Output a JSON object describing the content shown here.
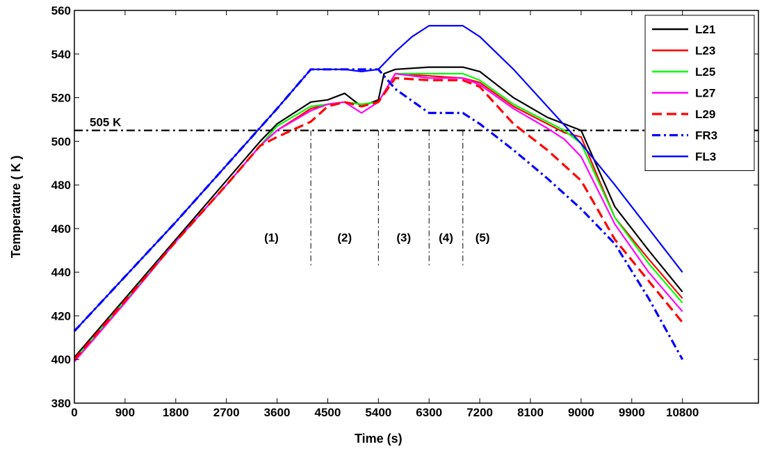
{
  "chart_data": {
    "type": "line",
    "xlabel": "Time (s)",
    "ylabel": "Temperature ( K )",
    "xlim": [
      0,
      12150
    ],
    "ylim": [
      380,
      560
    ],
    "xticks": [
      0,
      900,
      1800,
      2700,
      3600,
      4500,
      5400,
      6300,
      7200,
      8100,
      9000,
      9900,
      10800
    ],
    "yticks": [
      380,
      400,
      420,
      440,
      460,
      480,
      500,
      520,
      540,
      560
    ],
    "grid": false,
    "legend_position": "top-right",
    "series": [
      {
        "name": "L21",
        "color": "#000000",
        "dash": "solid",
        "x": [
          0,
          900,
          1800,
          2700,
          3300,
          3600,
          4200,
          4500,
          4800,
          5100,
          5400,
          5500,
          5700,
          6300,
          6900,
          7200,
          7800,
          8400,
          9000,
          9600,
          10200,
          10800
        ],
        "y": [
          401,
          428,
          455,
          482,
          500,
          508,
          518,
          519,
          522,
          516,
          519,
          531,
          533,
          534,
          534,
          532,
          520,
          511,
          505,
          470,
          450,
          431
        ]
      },
      {
        "name": "L23",
        "color": "#ff0000",
        "dash": "solid",
        "x": [
          0,
          900,
          1800,
          2700,
          3300,
          3600,
          4200,
          4500,
          4800,
          5100,
          5400,
          5700,
          6300,
          6900,
          7200,
          7800,
          8400,
          8700,
          9000,
          9600,
          10200,
          10800
        ],
        "y": [
          400,
          427,
          454,
          480,
          498,
          505,
          515,
          517,
          518,
          517,
          518,
          531,
          530,
          529,
          527,
          516,
          508,
          504,
          502,
          465,
          446,
          428
        ]
      },
      {
        "name": "L25",
        "color": "#00ff00",
        "dash": "solid",
        "x": [
          0,
          900,
          1800,
          2700,
          3300,
          3600,
          4200,
          4500,
          4800,
          5100,
          5400,
          5700,
          6300,
          6900,
          7200,
          7800,
          8400,
          8700,
          9000,
          9600,
          10200,
          10800
        ],
        "y": [
          400,
          427,
          454,
          480,
          498,
          507,
          516,
          517,
          518,
          517,
          518,
          531,
          531,
          531,
          528,
          517,
          509,
          505,
          499,
          465,
          444,
          426
        ]
      },
      {
        "name": "L27",
        "color": "#ff00ff",
        "dash": "solid",
        "x": [
          0,
          900,
          1800,
          2700,
          3300,
          3600,
          4200,
          4500,
          4800,
          5100,
          5400,
          5700,
          6300,
          6900,
          7200,
          7800,
          8400,
          8700,
          9000,
          9600,
          10200,
          10800
        ],
        "y": [
          399,
          426,
          454,
          480,
          498,
          505,
          514,
          517,
          518,
          513,
          518,
          531,
          529,
          529,
          526,
          515,
          506,
          501,
          493,
          462,
          440,
          422
        ]
      },
      {
        "name": "L29",
        "color": "#ff0000",
        "dash": "dashed",
        "x": [
          0,
          900,
          1800,
          2700,
          3300,
          3600,
          4200,
          4500,
          4800,
          5100,
          5400,
          5700,
          6300,
          6900,
          7200,
          7800,
          8400,
          9000,
          9600,
          10200,
          10800
        ],
        "y": [
          400,
          427,
          454,
          480,
          498,
          502,
          509,
          516,
          518,
          516,
          518,
          529,
          528,
          528,
          525,
          508,
          496,
          482,
          455,
          436,
          417
        ]
      },
      {
        "name": "FR3",
        "color": "#0000ff",
        "dash": "dashdot",
        "x": [
          0,
          900,
          1800,
          2700,
          3600,
          4200,
          5400,
          5700,
          6300,
          6900,
          7200,
          7800,
          8400,
          9000,
          9600,
          10200,
          10800
        ],
        "y": [
          413,
          438,
          463,
          489,
          515,
          533,
          533,
          524,
          513,
          513,
          508,
          496,
          483,
          469,
          453,
          428,
          400
        ]
      },
      {
        "name": "FL3",
        "color": "#0000ff",
        "dash": "solid",
        "x": [
          0,
          900,
          1800,
          2700,
          3600,
          4200,
          4800,
          5100,
          5400,
          5700,
          6000,
          6300,
          6900,
          7200,
          7800,
          8400,
          9000,
          9600,
          10200,
          10800
        ],
        "y": [
          413,
          438,
          463,
          489,
          515,
          533,
          533,
          532,
          533,
          541,
          548,
          553,
          553,
          548,
          533,
          516,
          499,
          480,
          460,
          440
        ]
      }
    ],
    "annotations": {
      "reference_line": {
        "y": 505,
        "label": "505 K"
      },
      "phase_dividers": [
        4200,
        5400,
        6300,
        6900
      ],
      "phase_labels": [
        {
          "text": "(1)",
          "x": 3500
        },
        {
          "text": "(2)",
          "x": 4800
        },
        {
          "text": "(3)",
          "x": 5850
        },
        {
          "text": "(4)",
          "x": 6600
        },
        {
          "text": "(5)",
          "x": 7250
        }
      ],
      "phase_label_y": 454,
      "phase_divider_bottom": 442
    }
  }
}
